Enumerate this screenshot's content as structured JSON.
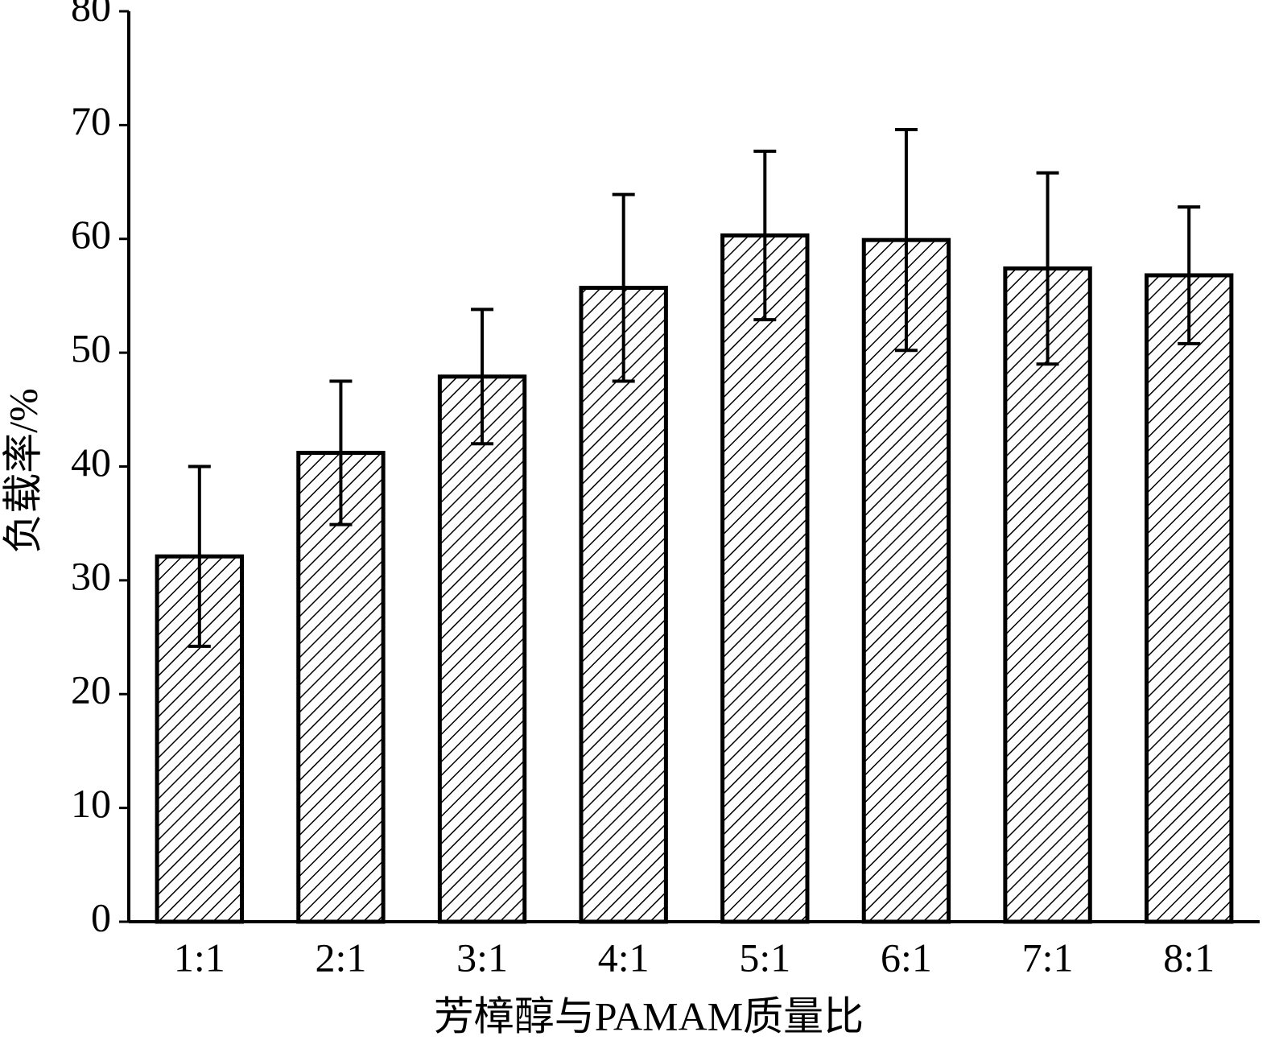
{
  "chart_data": {
    "type": "bar",
    "x_label": "芳樟醇与PAMAM质量比",
    "y_label": "负载率/%",
    "categories": [
      "1:1",
      "2:1",
      "3:1",
      "4:1",
      "5:1",
      "6:1",
      "7:1",
      "8:1"
    ],
    "values": [
      32.1,
      41.2,
      47.9,
      55.7,
      60.3,
      59.9,
      57.4,
      56.8
    ],
    "errors": [
      7.9,
      6.3,
      5.9,
      8.2,
      7.4,
      9.7,
      8.4,
      6.0
    ],
    "color": "#000000",
    "ylim": [
      0,
      80
    ],
    "yticks": [
      0,
      10,
      20,
      30,
      40,
      50,
      60,
      70,
      80
    ],
    "grid": false
  }
}
